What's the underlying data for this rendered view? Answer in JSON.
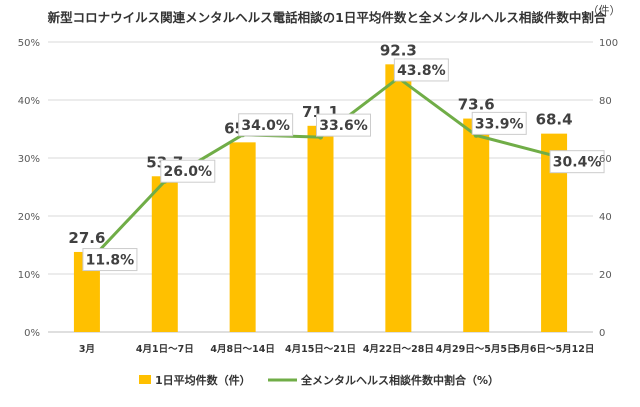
{
  "chart_data": {
    "type": "bar",
    "title": "新型コロナウイルス関連メンタルヘルス電話相談の1日平均件数と全メンタルヘルス相談件数中割合",
    "unit_right": "（件）",
    "categories": [
      "3月",
      "4月1日～7日",
      "4月8日～14日",
      "4月15日～21日",
      "4月22日～28日",
      "4月29日～5月5日",
      "5月6日～5月12日"
    ],
    "left_axis": {
      "ylim": [
        0,
        50
      ],
      "ticks": [
        "0%",
        "10%",
        "20%",
        "30%",
        "40%",
        "50%"
      ]
    },
    "right_axis": {
      "ylim": [
        0,
        100
      ],
      "ticks": [
        "0",
        "20",
        "40",
        "60",
        "80",
        "100"
      ]
    },
    "series": [
      {
        "name": "1日平均件数（件）",
        "type": "bar",
        "axis": "right",
        "color": "#FFC000",
        "values": [
          27.6,
          53.7,
          65.4,
          71.1,
          92.3,
          73.6,
          68.4
        ],
        "labels": [
          "27.6",
          "53.7",
          "65.4",
          "71.1",
          "92.3",
          "73.6",
          "68.4"
        ]
      },
      {
        "name": "全メンタルヘルス相談件数中割合（%）",
        "type": "line",
        "axis": "left",
        "color": "#70AD47",
        "values": [
          11.8,
          26.0,
          34.0,
          33.6,
          43.8,
          33.9,
          30.4
        ],
        "labels": [
          "11.8%",
          "26.0%",
          "34.0%",
          "33.6%",
          "43.8%",
          "33.9%",
          "30.4%"
        ]
      }
    ],
    "grid": true,
    "legend": "bottom"
  }
}
